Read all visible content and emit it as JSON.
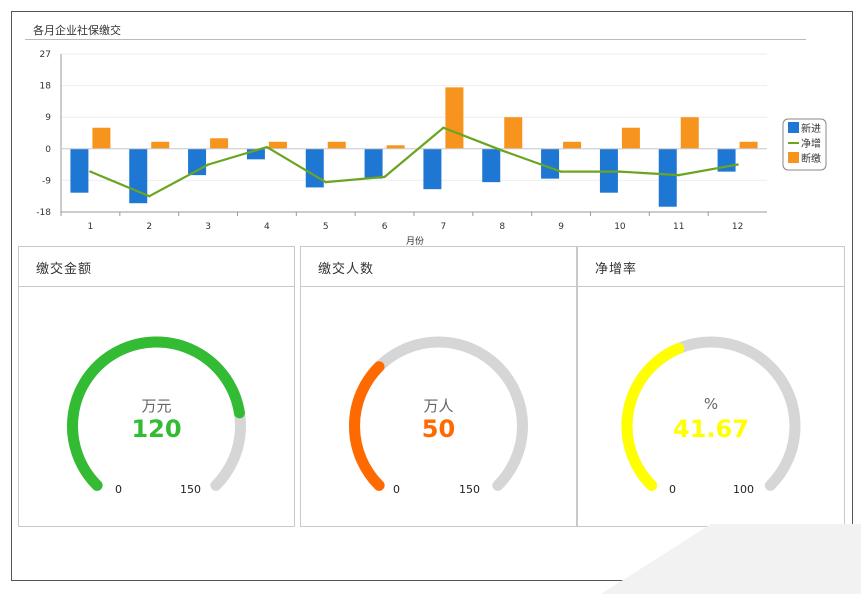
{
  "bar_panel": {
    "title": "各月企业社保缴交"
  },
  "chart_data": {
    "type": "bar",
    "title": "各月企业社保缴交",
    "xlabel": "月份",
    "ylabel": "",
    "categories": [
      "1",
      "2",
      "3",
      "4",
      "5",
      "6",
      "7",
      "8",
      "9",
      "10",
      "11",
      "12"
    ],
    "ylim": [
      -18,
      27
    ],
    "yticks": [
      "27",
      "18",
      "9",
      "0",
      "-9",
      "-18"
    ],
    "series": [
      {
        "name": "新进",
        "type": "bar",
        "color": "#1f77d4",
        "values": [
          -12.5,
          -15.5,
          -7.5,
          -3,
          -11,
          -8.5,
          -11.5,
          -9.5,
          -8.5,
          -12.5,
          -16.5,
          -6.5
        ]
      },
      {
        "name": "净增",
        "type": "line",
        "color": "#6aa51f",
        "values": [
          -6.5,
          -13.5,
          -4.5,
          0.5,
          -9.5,
          -8,
          6,
          -0.5,
          -6.5,
          -6.5,
          -7.5,
          -4.5
        ]
      },
      {
        "name": "断缴",
        "type": "bar",
        "color": "#f7941d",
        "values": [
          6,
          2,
          3,
          2,
          2,
          1,
          17.5,
          9,
          2,
          6,
          9,
          2
        ]
      }
    ],
    "grid": true,
    "legend": "right"
  },
  "gauges": [
    {
      "title": "缴交金额",
      "unit": "万元",
      "value": 120,
      "value_text": "120",
      "min": "0",
      "max": "150",
      "fraction": 0.8,
      "color": "#33bb33"
    },
    {
      "title": "缴交人数",
      "unit": "万人",
      "value": 50,
      "value_text": "50",
      "min": "0",
      "max": "150",
      "fraction": 0.333,
      "color": "#ff6a00"
    },
    {
      "title": "净增率",
      "unit": "%",
      "value": 41.67,
      "value_text": "41.67",
      "min": "0",
      "max": "100",
      "fraction": 0.4167,
      "color": "#ffff00"
    }
  ]
}
